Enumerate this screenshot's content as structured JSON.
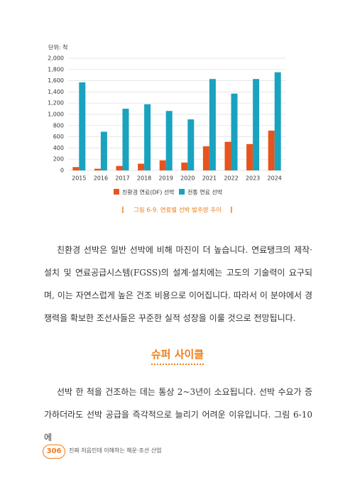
{
  "chart_data": {
    "type": "bar",
    "unit": "단위: 척",
    "caption": "그림 6-9. 연료별 선박 발주량 추이",
    "categories": [
      "2015",
      "2016",
      "2017",
      "2018",
      "2019",
      "2020",
      "2021",
      "2022",
      "2023",
      "2024"
    ],
    "series": [
      {
        "name": "친환경 연료(DF) 선박",
        "color": "#e8541e",
        "values": [
          60,
          30,
          80,
          120,
          180,
          140,
          430,
          510,
          470,
          710
        ]
      },
      {
        "name": "전통 연료 선박",
        "color": "#1aa3bf",
        "values": [
          1570,
          690,
          1100,
          1180,
          1060,
          910,
          1630,
          1370,
          1630,
          1750
        ]
      }
    ],
    "ylim": [
      0,
      2000
    ],
    "yticks": [
      0,
      200,
      400,
      600,
      800,
      {
        "value": 1000,
        "label": "1,000"
      },
      {
        "value": 1200,
        "label": "1,200"
      },
      {
        "value": 1400,
        "label": "1,400"
      },
      {
        "value": 1600,
        "label": "1,600"
      },
      {
        "value": 1800,
        "label": "1,800"
      },
      {
        "value": 2000,
        "label": "2,000"
      }
    ],
    "grid": true,
    "legend": "bottom"
  },
  "body": {
    "paragraphs": [
      "친환경 선박은 일반 선박에 비해 마진이 더 높습니다. 연료탱크의 제작·설치 및 연료공급시스템(FGSS)의 설계·설치에는 고도의 기술력이 요구되며, 이는 자연스럽게 높은 건조 비용으로 이어집니다. 따라서 이 분야에서 경쟁력을 확보한 조선사들은 꾸준한 실적 성장을 이룰 것으로 전망됩니다.",
      "선박 한 척을 건조하는 데는 통상 2~3년이 소요됩니다. 선박 수요가 증가하더라도 선박 공급을 즉각적으로 늘리기 어려운 이유입니다. 그림 6-10에"
    ],
    "heading": "슈퍼 사이클"
  },
  "footer": {
    "page_number": "306",
    "book_title": "진짜 처음인데 이해하는 해운·조선 산업"
  }
}
